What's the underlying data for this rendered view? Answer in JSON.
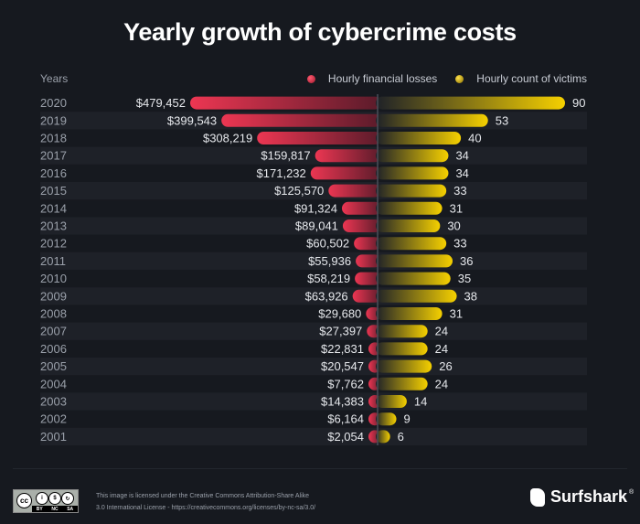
{
  "title": "Yearly growth of cybercrime costs",
  "colors": {
    "background": "#16191f",
    "losses_accent": "#e8334f",
    "victims_accent": "#f2cc00",
    "stripe": "#1e2128"
  },
  "chart_data": {
    "type": "bar",
    "title": "Yearly growth of cybercrime costs",
    "orientation": "horizontal-diverging",
    "category_header": "Years",
    "legend_position": "top-right",
    "categories": [
      "2020",
      "2019",
      "2018",
      "2017",
      "2016",
      "2015",
      "2014",
      "2013",
      "2012",
      "2011",
      "2010",
      "2009",
      "2008",
      "2007",
      "2006",
      "2005",
      "2004",
      "2003",
      "2002",
      "2001"
    ],
    "series": [
      {
        "name": "Hourly financial losses",
        "side": "left",
        "color": "#e8334f",
        "values": [
          479452,
          399543,
          308219,
          159817,
          171232,
          125570,
          91324,
          89041,
          60502,
          55936,
          58219,
          63926,
          29680,
          27397,
          22831,
          20547,
          7762,
          14383,
          6164,
          2054
        ],
        "labels": [
          "$479,452",
          "$399,543",
          "$308,219",
          "$159,817",
          "$171,232",
          "$125,570",
          "$91,324",
          "$89,041",
          "$60,502",
          "$55,936",
          "$58,219",
          "$63,926",
          "$29,680",
          "$27,397",
          "$22,831",
          "$20,547",
          "$7,762",
          "$14,383",
          "$6,164",
          "$2,054"
        ]
      },
      {
        "name": "Hourly count of victims",
        "side": "right",
        "color": "#f2cc00",
        "values": [
          90,
          53,
          40,
          34,
          34,
          33,
          31,
          30,
          33,
          36,
          35,
          38,
          31,
          24,
          24,
          26,
          24,
          14,
          9,
          6
        ],
        "labels": [
          "90",
          "53",
          "40",
          "34",
          "34",
          "33",
          "31",
          "30",
          "33",
          "36",
          "35",
          "38",
          "31",
          "24",
          "24",
          "26",
          "24",
          "14",
          "9",
          "6"
        ]
      }
    ]
  },
  "footer": {
    "license_line1": "This image is licensed under the Creative Commons Attribution-Share Alike",
    "license_line2": "3.0 International License - https://creativecommons.org/licenses/by-nc-sa/3.0/",
    "cc_labels": [
      "BY",
      "NC",
      "SA"
    ],
    "cc_badge": "cc",
    "brand": "Surfshark",
    "brand_mark": "®"
  }
}
